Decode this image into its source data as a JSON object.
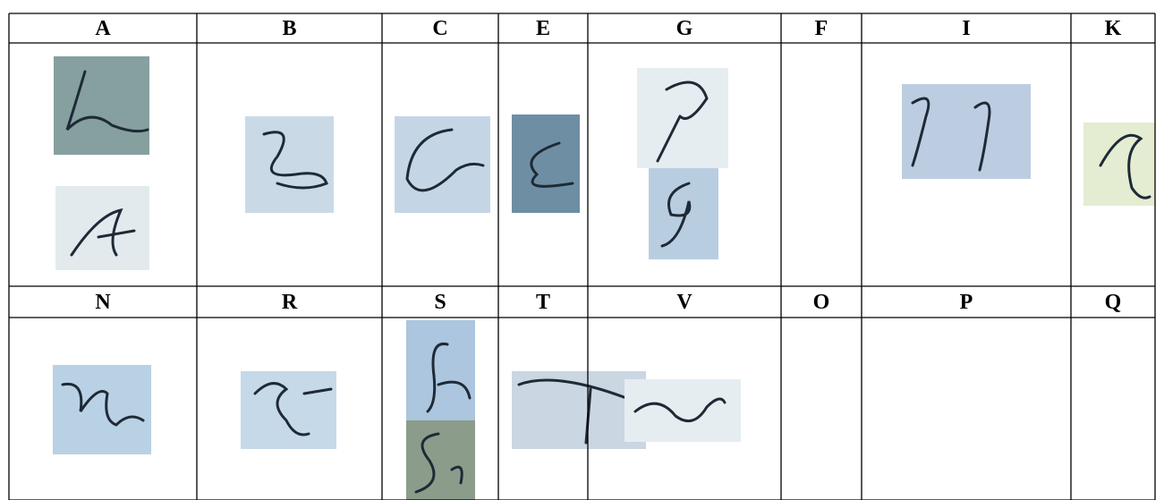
{
  "table": {
    "header_rows": [
      [
        "A",
        "B",
        "C",
        "E",
        "G",
        "F",
        "I",
        "K"
      ],
      [
        "N",
        "R",
        "S",
        "T",
        "V",
        "O",
        "P",
        "Q"
      ]
    ]
  }
}
